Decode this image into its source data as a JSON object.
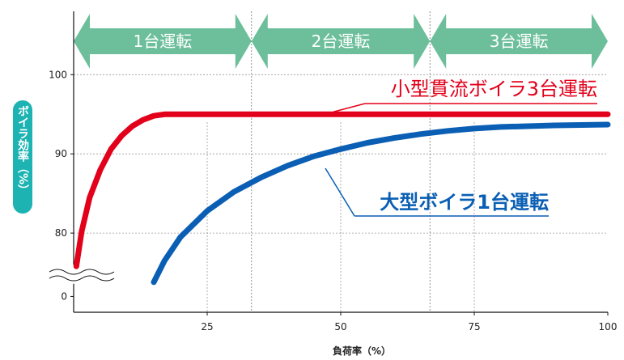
{
  "chart_data": {
    "type": "line",
    "xlabel": "負荷率（%）",
    "ylabel": "ボイラ効率（%）",
    "xlim": [
      0,
      100
    ],
    "ylim": [
      70,
      108
    ],
    "y_axis_break": true,
    "x_ticks": [
      "25",
      "50",
      "75",
      "100"
    ],
    "y_ticks": [
      "100",
      "90",
      "80",
      "0"
    ],
    "y_tick_values": [
      100,
      90,
      80,
      72
    ],
    "grid": "dashed",
    "operation_zones": [
      {
        "label": "1台運転",
        "from": 0,
        "to": 33.3
      },
      {
        "label": "2台運転",
        "from": 33.3,
        "to": 66.7
      },
      {
        "label": "3台運転",
        "from": 66.7,
        "to": 100
      }
    ],
    "series": [
      {
        "name": "小型貫流ボイラ3台運転",
        "color": "#e2001a",
        "x": [
          0.5,
          1.5,
          3,
          5,
          7,
          9,
          11,
          13,
          15,
          17,
          18,
          20,
          30,
          40,
          50,
          60,
          70,
          80,
          90,
          100
        ],
        "y": [
          75.8,
          80.2,
          84.5,
          88.0,
          90.6,
          92.3,
          93.5,
          94.3,
          94.8,
          95.0,
          95.0,
          95.0,
          95.0,
          95.0,
          95.0,
          95.0,
          95.0,
          95.0,
          95.0,
          95.0
        ]
      },
      {
        "name": "大型ボイラ1台運転",
        "color": "#0a5fb4",
        "x": [
          15,
          17,
          20,
          25,
          30,
          35,
          40,
          45,
          50,
          55,
          60,
          65,
          70,
          75,
          80,
          90,
          100
        ],
        "y": [
          73.8,
          76.5,
          79.5,
          82.8,
          85.2,
          87.0,
          88.5,
          89.7,
          90.6,
          91.4,
          92.0,
          92.5,
          92.9,
          93.2,
          93.4,
          93.6,
          93.7
        ]
      }
    ]
  }
}
